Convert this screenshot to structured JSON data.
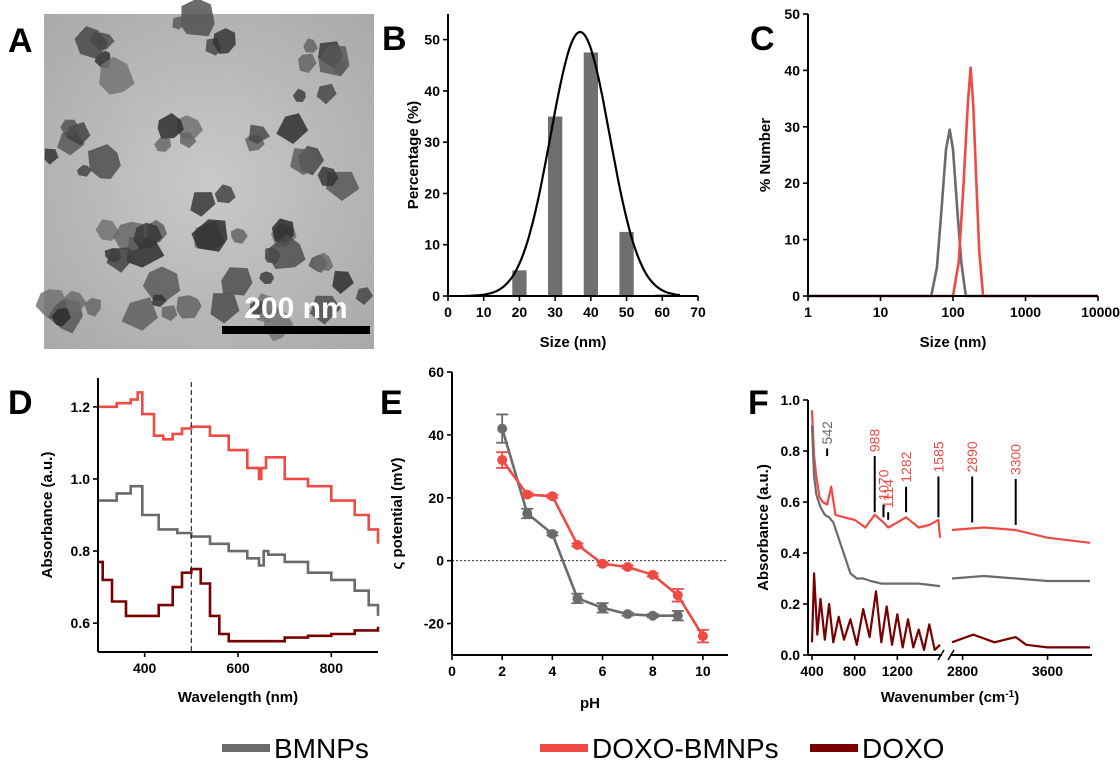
{
  "colors": {
    "bmnps": "#6b6b6b",
    "doxo_bmnps": "#f04a45",
    "doxo": "#7a0000",
    "bar": "#6f6f6f"
  },
  "legend": [
    {
      "label": "BMNPs",
      "color": "#6b6b6b"
    },
    {
      "label": "DOXO-BMNPs",
      "color": "#f04a45"
    },
    {
      "label": "DOXO",
      "color": "#7a0000"
    }
  ],
  "panel_a": {
    "letter": "A",
    "scale_bar_label": "200 nm"
  },
  "chart_data": [
    {
      "id": "B",
      "letter": "B",
      "type": "bar",
      "xlabel": "Size (nm)",
      "ylabel": "Percentage (%)",
      "xlim": [
        0,
        70
      ],
      "ylim": [
        0,
        55
      ],
      "xticks": [
        0,
        10,
        20,
        30,
        40,
        50,
        60,
        70
      ],
      "yticks": [
        0,
        10,
        20,
        30,
        40,
        50
      ],
      "bar_width": 4,
      "x": [
        20,
        30,
        40,
        50,
        60
      ],
      "values": [
        5,
        35,
        47.5,
        12.5,
        0.3
      ],
      "fit": {
        "type": "gaussian",
        "mean": 37,
        "sigma": 8.3,
        "amplitude": 51.5
      }
    },
    {
      "id": "C",
      "letter": "C",
      "type": "line",
      "xscale": "log",
      "xlabel": "Size (nm)",
      "ylabel": "% Number",
      "xlim": [
        1,
        10000
      ],
      "ylim": [
        0,
        50
      ],
      "xticks": [
        1,
        10,
        100,
        1000,
        10000
      ],
      "yticks": [
        0,
        10,
        20,
        30,
        40,
        50
      ],
      "series": [
        {
          "color": "#6b6b6b",
          "x": [
            1,
            50,
            60,
            70,
            80,
            90,
            100,
            115,
            130,
            150,
            10000
          ],
          "y": [
            0,
            0,
            5,
            16,
            26,
            29.5,
            26,
            15,
            6,
            0,
            0
          ]
        },
        {
          "color": "#f04a45",
          "x": [
            1,
            100,
            120,
            140,
            160,
            175,
            190,
            210,
            230,
            260,
            10000
          ],
          "y": [
            0,
            0,
            6,
            20,
            34,
            40.5,
            34,
            20,
            8,
            0,
            0
          ]
        }
      ]
    },
    {
      "id": "D",
      "letter": "D",
      "type": "line",
      "xlabel": "Wavelength (nm)",
      "ylabel": "Absorbance (a.u.)",
      "xlim": [
        300,
        900
      ],
      "ylim": [
        0.52,
        1.28
      ],
      "xticks": [
        400,
        600,
        800
      ],
      "yticks": [
        0.6,
        0.8,
        1.0,
        1.2
      ],
      "vline_x": 500,
      "series": [
        {
          "color": "#f04a45",
          "x": [
            300,
            340,
            370,
            385,
            395,
            420,
            440,
            460,
            480,
            500,
            540,
            580,
            620,
            645,
            650,
            660,
            700,
            750,
            800,
            850,
            880,
            900
          ],
          "y": [
            1.2,
            1.21,
            1.22,
            1.24,
            1.18,
            1.12,
            1.11,
            1.125,
            1.14,
            1.145,
            1.12,
            1.08,
            1.03,
            1.0,
            1.03,
            1.06,
            1.0,
            0.98,
            0.94,
            0.9,
            0.86,
            0.82
          ]
        },
        {
          "color": "#6b6b6b",
          "x": [
            300,
            340,
            370,
            385,
            395,
            430,
            470,
            500,
            540,
            580,
            620,
            645,
            655,
            665,
            700,
            750,
            800,
            850,
            880,
            900
          ],
          "y": [
            0.94,
            0.96,
            0.98,
            0.98,
            0.9,
            0.86,
            0.85,
            0.84,
            0.82,
            0.8,
            0.78,
            0.76,
            0.8,
            0.79,
            0.77,
            0.74,
            0.72,
            0.69,
            0.65,
            0.62
          ]
        },
        {
          "color": "#7a0000",
          "x": [
            300,
            310,
            330,
            360,
            400,
            430,
            460,
            480,
            500,
            520,
            540,
            560,
            580,
            600,
            650,
            700,
            750,
            800,
            850,
            900
          ],
          "y": [
            0.77,
            0.72,
            0.66,
            0.62,
            0.62,
            0.65,
            0.7,
            0.74,
            0.75,
            0.71,
            0.62,
            0.57,
            0.55,
            0.55,
            0.55,
            0.56,
            0.565,
            0.57,
            0.58,
            0.59
          ]
        }
      ]
    },
    {
      "id": "E",
      "letter": "E",
      "type": "line",
      "xlabel": "pH",
      "ylabel": "ς potential (mV)",
      "xlim": [
        0,
        11
      ],
      "ylim": [
        -30,
        60
      ],
      "xticks": [
        0,
        2,
        4,
        6,
        8,
        10
      ],
      "yticks": [
        -20,
        0,
        20,
        40,
        60
      ],
      "zero_line": true,
      "series": [
        {
          "color": "#6b6b6b",
          "x": [
            2,
            3,
            4,
            5,
            6,
            7,
            8,
            9
          ],
          "y": [
            42,
            15,
            8.5,
            -12,
            -15,
            -17,
            -17.5,
            -17.5
          ],
          "err": [
            4.5,
            1.5,
            0.5,
            1.5,
            1.5,
            0.5,
            0.5,
            1.5
          ]
        },
        {
          "color": "#f04a45",
          "x": [
            2,
            3,
            4,
            5,
            6,
            7,
            8,
            9,
            10
          ],
          "y": [
            32,
            21,
            20.5,
            5,
            -1,
            -2,
            -4.5,
            -11,
            -24
          ],
          "err": [
            2.5,
            0.5,
            0.5,
            0.5,
            0.5,
            0.5,
            0.5,
            2,
            2
          ]
        }
      ]
    },
    {
      "id": "F",
      "letter": "F",
      "type": "line",
      "xlabel": "Wavenumber (cm",
      "xlabel_sup": "-1",
      "xlabel_end": ")",
      "ylabel": "Absorbance (a.u.)",
      "xlim": [
        400,
        4000
      ],
      "x_break": [
        1600,
        2700
      ],
      "ylim": [
        0,
        1.0
      ],
      "xticks": [
        400,
        800,
        1200,
        2800,
        3600
      ],
      "yticks": [
        0.0,
        0.2,
        0.4,
        0.6,
        0.8,
        1.0
      ],
      "annotations": [
        {
          "label": "542",
          "x": 542,
          "color": "#6b6b6b",
          "y_from": 0.78,
          "y_to": 0.81
        },
        {
          "label": "988",
          "x": 988,
          "color": "#f04a45",
          "y_from": 0.56,
          "y_to": 0.78
        },
        {
          "label": "1070",
          "x": 1070,
          "color": "#f04a45",
          "y_from": 0.54,
          "y_to": 0.59
        },
        {
          "label": "1114",
          "x": 1114,
          "color": "#f04a45",
          "y_from": 0.53,
          "y_to": 0.56
        },
        {
          "label": "1282",
          "x": 1282,
          "color": "#f04a45",
          "y_from": 0.56,
          "y_to": 0.66
        },
        {
          "label": "1585",
          "x": 1585,
          "color": "#f04a45",
          "y_from": 0.54,
          "y_to": 0.7
        },
        {
          "label": "2890",
          "x": 2890,
          "color": "#f04a45",
          "y_from": 0.52,
          "y_to": 0.7
        },
        {
          "label": "3300",
          "x": 3300,
          "color": "#f04a45",
          "y_from": 0.51,
          "y_to": 0.69
        }
      ],
      "series": [
        {
          "color": "#f04a45",
          "x": [
            400,
            420,
            440,
            470,
            500,
            542,
            580,
            620,
            700,
            800,
            900,
            988,
            1070,
            1114,
            1200,
            1282,
            1400,
            1500,
            1585,
            1600,
            2700,
            3000,
            3300,
            3600,
            4000
          ],
          "y": [
            0.96,
            0.78,
            0.7,
            0.62,
            0.6,
            0.59,
            0.66,
            0.55,
            0.54,
            0.53,
            0.5,
            0.55,
            0.52,
            0.5,
            0.52,
            0.54,
            0.5,
            0.51,
            0.53,
            0.46,
            0.49,
            0.5,
            0.49,
            0.46,
            0.44
          ]
        },
        {
          "color": "#6b6b6b",
          "x": [
            400,
            420,
            440,
            480,
            520,
            560,
            600,
            680,
            760,
            820,
            880,
            950,
            1050,
            1200,
            1400,
            1600,
            2700,
            3000,
            3300,
            3600,
            4000
          ],
          "y": [
            0.9,
            0.7,
            0.63,
            0.58,
            0.55,
            0.54,
            0.52,
            0.42,
            0.32,
            0.3,
            0.3,
            0.29,
            0.28,
            0.28,
            0.28,
            0.27,
            0.3,
            0.31,
            0.3,
            0.29,
            0.29
          ]
        },
        {
          "color": "#7a0000",
          "x": [
            400,
            420,
            450,
            480,
            520,
            560,
            600,
            650,
            700,
            760,
            820,
            880,
            940,
            1000,
            1050,
            1100,
            1150,
            1200,
            1250,
            1300,
            1350,
            1400,
            1450,
            1500,
            1550,
            1600,
            2700,
            2900,
            3100,
            3300,
            3400,
            3600,
            4000
          ],
          "y": [
            0.05,
            0.32,
            0.08,
            0.22,
            0.06,
            0.2,
            0.05,
            0.15,
            0.06,
            0.14,
            0.04,
            0.18,
            0.07,
            0.25,
            0.05,
            0.19,
            0.04,
            0.16,
            0.03,
            0.14,
            0.03,
            0.1,
            0.02,
            0.12,
            0.02,
            0.04,
            0.05,
            0.08,
            0.05,
            0.07,
            0.04,
            0.03,
            0.03
          ]
        }
      ]
    }
  ]
}
